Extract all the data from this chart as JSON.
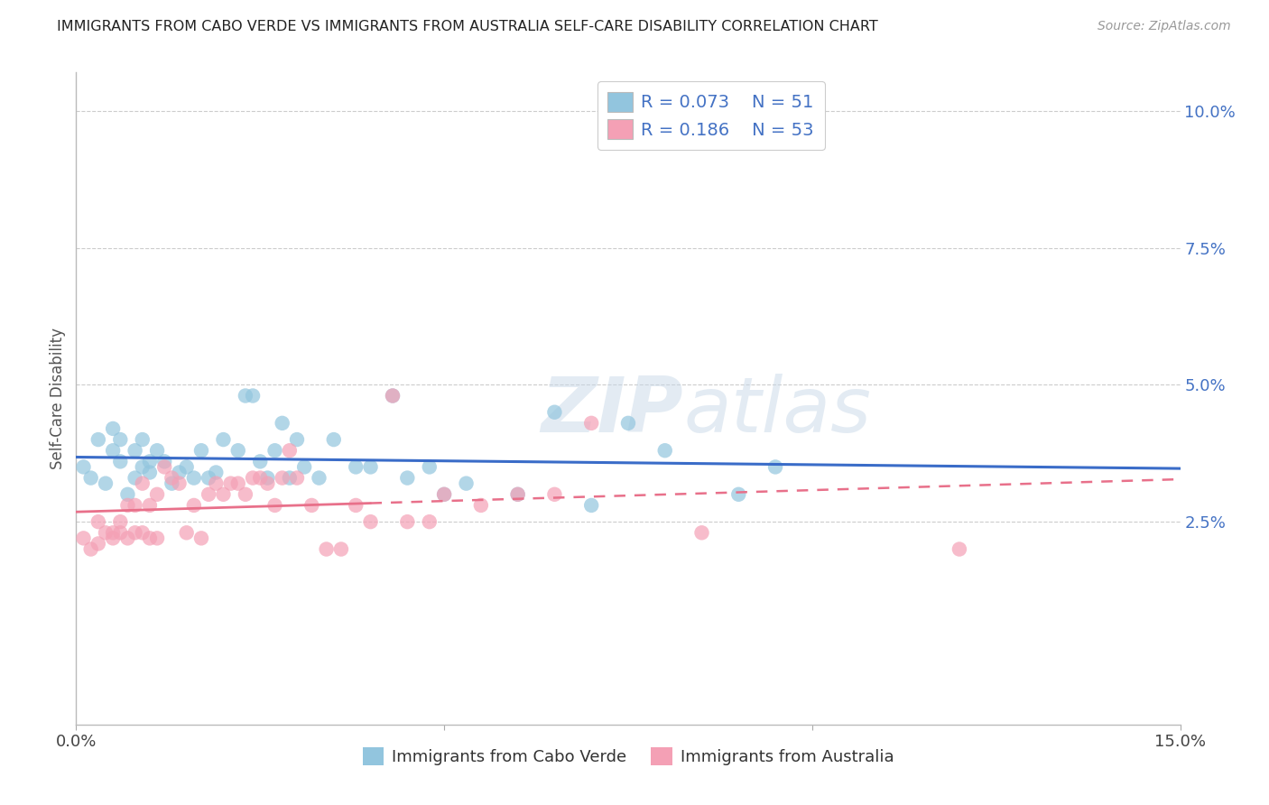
{
  "title": "IMMIGRANTS FROM CABO VERDE VS IMMIGRANTS FROM AUSTRALIA SELF-CARE DISABILITY CORRELATION CHART",
  "source": "Source: ZipAtlas.com",
  "ylabel": "Self-Care Disability",
  "yticks": [
    0.0,
    0.025,
    0.05,
    0.075,
    0.1
  ],
  "ytick_labels": [
    "",
    "2.5%",
    "5.0%",
    "7.5%",
    "10.0%"
  ],
  "xlim": [
    0.0,
    0.15
  ],
  "ylim": [
    -0.012,
    0.107
  ],
  "legend_r1_val": "0.073",
  "legend_n1_val": "51",
  "legend_r2_val": "0.186",
  "legend_n2_val": "53",
  "color_blue": "#92C5DE",
  "color_pink": "#F4A0B5",
  "line_color_blue": "#3A6CC8",
  "line_color_pink": "#E8708A",
  "text_color_blue": "#4472C4",
  "watermark_color": "#C8D8E8",
  "legend_label1": "Immigrants from Cabo Verde",
  "legend_label2": "Immigrants from Australia",
  "cabo_verde_x": [
    0.001,
    0.002,
    0.003,
    0.004,
    0.005,
    0.005,
    0.006,
    0.006,
    0.007,
    0.008,
    0.008,
    0.009,
    0.009,
    0.01,
    0.01,
    0.011,
    0.012,
    0.013,
    0.014,
    0.015,
    0.016,
    0.017,
    0.018,
    0.019,
    0.02,
    0.022,
    0.023,
    0.024,
    0.025,
    0.026,
    0.027,
    0.028,
    0.029,
    0.03,
    0.031,
    0.033,
    0.035,
    0.038,
    0.04,
    0.043,
    0.045,
    0.048,
    0.05,
    0.053,
    0.06,
    0.065,
    0.07,
    0.075,
    0.08,
    0.09,
    0.095
  ],
  "cabo_verde_y": [
    0.035,
    0.033,
    0.04,
    0.032,
    0.038,
    0.042,
    0.036,
    0.04,
    0.03,
    0.033,
    0.038,
    0.035,
    0.04,
    0.034,
    0.036,
    0.038,
    0.036,
    0.032,
    0.034,
    0.035,
    0.033,
    0.038,
    0.033,
    0.034,
    0.04,
    0.038,
    0.048,
    0.048,
    0.036,
    0.033,
    0.038,
    0.043,
    0.033,
    0.04,
    0.035,
    0.033,
    0.04,
    0.035,
    0.035,
    0.048,
    0.033,
    0.035,
    0.03,
    0.032,
    0.03,
    0.045,
    0.028,
    0.043,
    0.038,
    0.03,
    0.035
  ],
  "australia_x": [
    0.001,
    0.002,
    0.003,
    0.003,
    0.004,
    0.005,
    0.005,
    0.006,
    0.006,
    0.007,
    0.007,
    0.008,
    0.008,
    0.009,
    0.009,
    0.01,
    0.01,
    0.011,
    0.011,
    0.012,
    0.013,
    0.014,
    0.015,
    0.016,
    0.017,
    0.018,
    0.019,
    0.02,
    0.021,
    0.022,
    0.023,
    0.024,
    0.025,
    0.026,
    0.027,
    0.028,
    0.029,
    0.03,
    0.032,
    0.034,
    0.036,
    0.038,
    0.04,
    0.043,
    0.045,
    0.048,
    0.05,
    0.055,
    0.06,
    0.065,
    0.07,
    0.085,
    0.12
  ],
  "australia_y": [
    0.022,
    0.02,
    0.021,
    0.025,
    0.023,
    0.022,
    0.023,
    0.023,
    0.025,
    0.022,
    0.028,
    0.023,
    0.028,
    0.023,
    0.032,
    0.022,
    0.028,
    0.022,
    0.03,
    0.035,
    0.033,
    0.032,
    0.023,
    0.028,
    0.022,
    0.03,
    0.032,
    0.03,
    0.032,
    0.032,
    0.03,
    0.033,
    0.033,
    0.032,
    0.028,
    0.033,
    0.038,
    0.033,
    0.028,
    0.02,
    0.02,
    0.028,
    0.025,
    0.048,
    0.025,
    0.025,
    0.03,
    0.028,
    0.03,
    0.03,
    0.043,
    0.023,
    0.02
  ],
  "dashed_line_start": 0.04,
  "solid_line_end": 0.04
}
